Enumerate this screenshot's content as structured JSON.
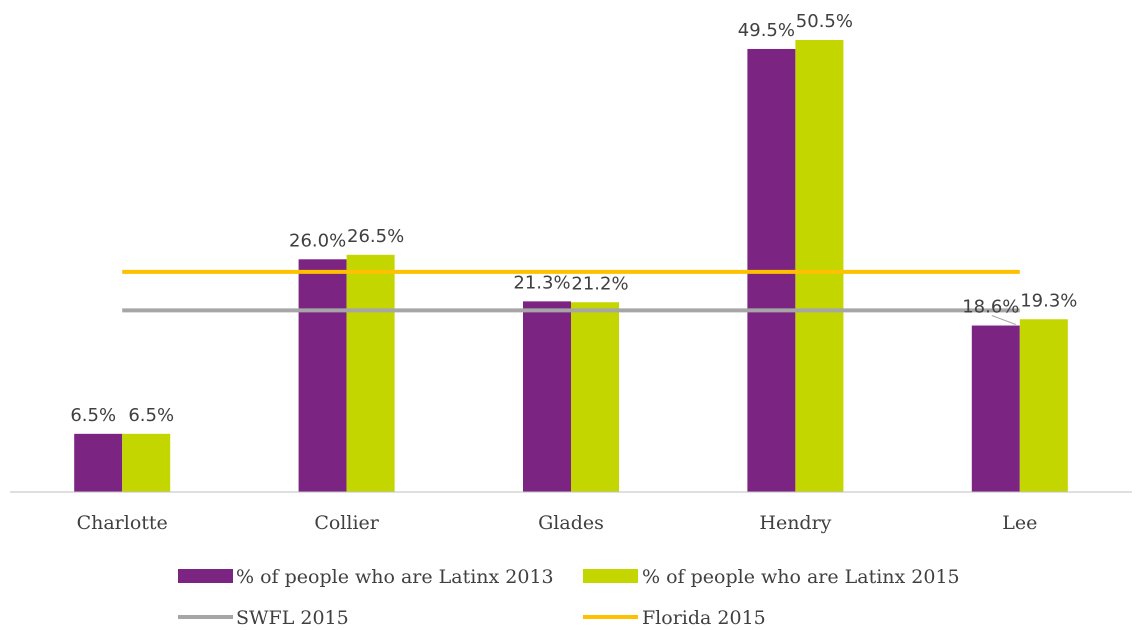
{
  "chart_data": {
    "type": "bar",
    "categories": [
      "Charlotte",
      "Collier",
      "Glades",
      "Hendry",
      "Lee"
    ],
    "series": [
      {
        "name": "% of people who are Latinx 2013",
        "values": [
          6.5,
          26.0,
          21.3,
          49.5,
          18.6
        ],
        "labels": [
          "6.5%",
          "26.0%",
          "21.3%",
          "49.5%",
          "18.6%"
        ],
        "color": "#7B2482"
      },
      {
        "name": "% of people who are Latinx 2015",
        "values": [
          6.5,
          26.5,
          21.2,
          50.5,
          19.3
        ],
        "labels": [
          "6.5%",
          "26.5%",
          "21.2%",
          "50.5%",
          "19.3%"
        ],
        "color": "#C4D600"
      }
    ],
    "reference_lines": [
      {
        "name": "SWFL 2015",
        "value": 20.3,
        "color": "#A6A6A6"
      },
      {
        "name": "Florida 2015",
        "value": 24.6,
        "color": "#FFC000"
      }
    ],
    "ylim": [
      0,
      52
    ],
    "grid": false,
    "legend_position": "bottom"
  }
}
